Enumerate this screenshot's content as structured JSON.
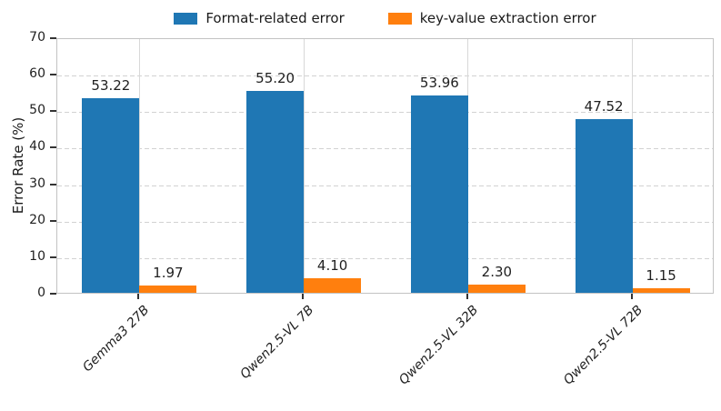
{
  "chart_data": {
    "type": "bar",
    "categories": [
      "Gemma3 27B",
      "Qwen2.5-VL 7B",
      "Qwen2.5-VL 32B",
      "Qwen2.5-VL 72B"
    ],
    "series": [
      {
        "name": "Format-related error",
        "color": "#1f77b4",
        "values": [
          53.22,
          55.2,
          53.96,
          47.52
        ],
        "labels": [
          "53.22",
          "55.20",
          "53.96",
          "47.52"
        ]
      },
      {
        "name": "key-value extraction error",
        "color": "#ff7f0e",
        "values": [
          1.97,
          4.1,
          2.3,
          1.15
        ],
        "labels": [
          "1.97",
          "4.10",
          "2.30",
          "1.15"
        ]
      }
    ],
    "xlabel": "",
    "ylabel": "Error Rate (%)",
    "ylim": [
      0,
      70
    ],
    "yticks": [
      0,
      10,
      20,
      30,
      40,
      50,
      60,
      70
    ],
    "legend_position": "top",
    "grid": {
      "horizontal": "dashed",
      "vertical": "solid"
    },
    "value_labels_shown": true
  },
  "colors": {
    "blue_series": "#1f77b4",
    "orange_series": "#ff7f0e",
    "grid": "#d2d2d2",
    "spine": "#c3c3c3",
    "text": "#1a1a1a"
  }
}
